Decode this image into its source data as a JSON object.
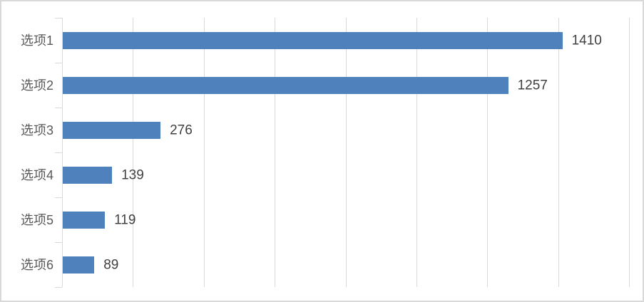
{
  "chart_data": {
    "type": "bar",
    "orientation": "horizontal",
    "title": "",
    "xlabel": "",
    "ylabel": "",
    "categories": [
      "选项1",
      "选项2",
      "选项3",
      "选项4",
      "选项5",
      "选项6"
    ],
    "values": [
      1410,
      1257,
      276,
      139,
      119,
      89
    ],
    "value_labels": [
      "1410",
      "1257",
      "276",
      "139",
      "119",
      "89"
    ],
    "value_axis": {
      "min": 0,
      "max": 1600,
      "tick_interval": 200,
      "tick_labels_visible": false
    },
    "gridlines": "vertical-major",
    "legend": "none",
    "colors": {
      "bar": "#4f81bd",
      "gridline": "#d9d9d9",
      "axis_line": "#d9d9d9",
      "category_label": "#595959",
      "value_label": "#404040",
      "background": "#ffffff",
      "figure_border": "#d9d9d9"
    }
  }
}
